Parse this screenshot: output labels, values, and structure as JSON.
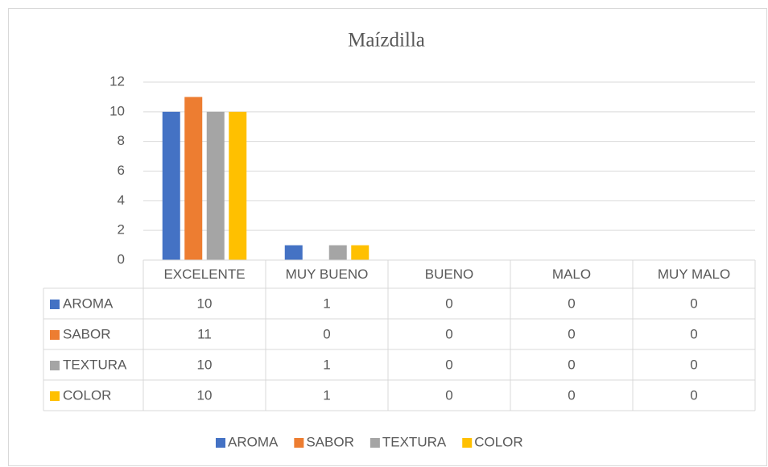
{
  "chart_data": {
    "type": "bar",
    "title": "Maízdilla",
    "categories": [
      "EXCELENTE",
      "MUY BUENO",
      "BUENO",
      "MALO",
      "MUY MALO"
    ],
    "series": [
      {
        "name": "AROMA",
        "color": "#4472c4",
        "values": [
          10,
          1,
          0,
          0,
          0
        ]
      },
      {
        "name": "SABOR",
        "color": "#ed7d31",
        "values": [
          11,
          0,
          0,
          0,
          0
        ]
      },
      {
        "name": "TEXTURA",
        "color": "#a5a5a5",
        "values": [
          10,
          1,
          0,
          0,
          0
        ]
      },
      {
        "name": "COLOR",
        "color": "#ffc000",
        "values": [
          10,
          1,
          0,
          0,
          0
        ]
      }
    ],
    "ylim": [
      0,
      12
    ],
    "yticks": [
      0,
      2,
      4,
      6,
      8,
      10,
      12
    ],
    "grid": true,
    "legend": "bottom",
    "data_table": true
  }
}
